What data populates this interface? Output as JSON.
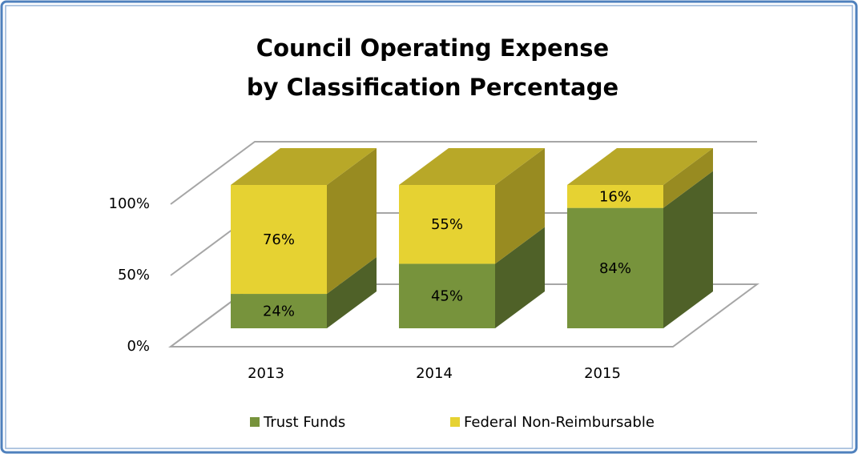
{
  "chart_data": {
    "type": "bar3d_stacked",
    "title": [
      "Council Operating Expense",
      "by Classification Percentage"
    ],
    "categories": [
      "2013",
      "2014",
      "2015"
    ],
    "series": [
      {
        "name": "Trust Funds",
        "color": "#77933c",
        "values": [
          24,
          45,
          84
        ],
        "value_labels": [
          "24%",
          "45%",
          "84%"
        ]
      },
      {
        "name": "Federal Non-Reimbursable",
        "color": "#e6d232",
        "values": [
          76,
          55,
          16
        ],
        "value_labels": [
          "76%",
          "55%",
          "16%"
        ]
      }
    ],
    "ylim": [
      0,
      100
    ],
    "yticks": [
      {
        "value": 0,
        "label": "0%"
      },
      {
        "value": 50,
        "label": "50%"
      },
      {
        "value": 100,
        "label": "100%"
      }
    ],
    "grid": true,
    "legend": "bottom"
  }
}
